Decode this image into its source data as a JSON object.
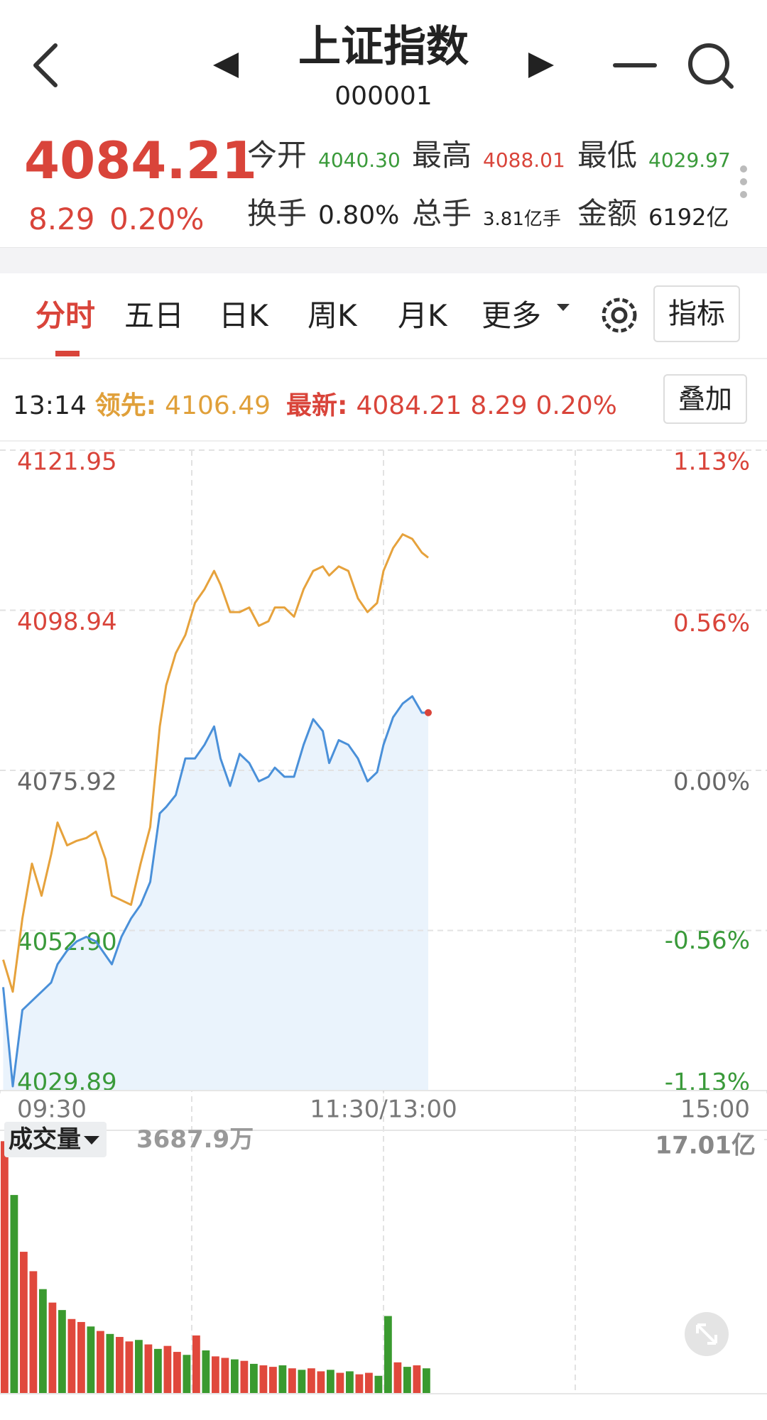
{
  "header": {
    "title": "上证指数",
    "code": "000001"
  },
  "quote": {
    "price": "4084.21",
    "change": "8.29",
    "change_pct": "0.20%",
    "stats": [
      {
        "label": "今开",
        "value": "4040.30"
      },
      {
        "label": "最高",
        "value": "4088.01"
      },
      {
        "label": "最低",
        "value": "4029.97"
      },
      {
        "label": "换手",
        "value": "0.80%"
      },
      {
        "label": "总手",
        "value": "3.81亿手"
      },
      {
        "label": "金额",
        "value": "6192亿"
      }
    ]
  },
  "tabs": [
    "分时",
    "五日",
    "日K",
    "周K",
    "月K",
    "更多"
  ],
  "indicator_button": "指标",
  "info": {
    "time": "13:14",
    "lead_label": "领先:",
    "lead_value": "4106.49",
    "latest_label": "最新:",
    "latest_value": "4084.21",
    "latest_change": "8.29",
    "latest_pct": "0.20%"
  },
  "overlay_button": "叠加",
  "volume_label": "成交量",
  "volume_value": "3687.9万",
  "chart_data": [
    {
      "type": "line",
      "x": [
        1,
        4,
        7,
        10,
        13,
        16,
        18,
        21,
        24,
        27,
        30,
        33,
        35,
        38,
        41,
        44,
        47,
        50,
        52,
        55,
        58,
        61,
        64,
        67,
        69,
        72,
        75,
        78,
        81,
        84,
        86,
        89,
        92,
        95,
        98,
        101,
        103,
        106,
        109,
        112,
        115,
        118,
        120,
        123,
        126,
        129,
        132,
        134
      ],
      "series": [
        {
          "color": "#4a90d9",
          "fill": "#eaf3fc",
          "values": [
            4044.75,
            4030.5,
            4041.47,
            4042.78,
            4044.1,
            4045.41,
            4048.04,
            4050.01,
            4051.33,
            4051.99,
            4051.33,
            4049.36,
            4048.04,
            4051.99,
            4054.62,
            4056.59,
            4059.88,
            4069.74,
            4070.66,
            4072.37,
            4077.63,
            4077.63,
            4079.6,
            4082.23,
            4077.63,
            4073.68,
            4078.29,
            4076.97,
            4074.34,
            4075,
            4076.31,
            4075,
            4075,
            4079.6,
            4083.28,
            4081.57,
            4076.97,
            4080.26,
            4079.6,
            4077.63,
            4074.34,
            4075.66,
            4079.6,
            4083.55,
            4085.52,
            4086.57,
            4084.2,
            4084.21
          ]
        },
        {
          "color": "#e6a23c",
          "values": [
            4048.7,
            4044.1,
            4054.62,
            4062.51,
            4057.9,
            4063.82,
            4068.42,
            4065.14,
            4065.79,
            4066.19,
            4067.11,
            4063.16,
            4057.9,
            4057.25,
            4056.59,
            4062.51,
            4067.77,
            4082.23,
            4088.15,
            4092.75,
            4095.38,
            4099.98,
            4101.96,
            4104.59,
            4102.61,
            4098.67,
            4098.67,
            4099.33,
            4096.7,
            4097.35,
            4099.33,
            4099.33,
            4098.01,
            4101.96,
            4104.59,
            4105.24,
            4103.93,
            4105.24,
            4104.59,
            4100.64,
            4098.67,
            4099.98,
            4104.59,
            4107.87,
            4109.85,
            4109.19,
            4107.22,
            4106.49
          ]
        }
      ],
      "xlim": [
        0,
        240
      ],
      "xticks": [
        {
          "value": 0,
          "label": "09:30"
        },
        {
          "value": 120,
          "label": "11:30/13:00"
        },
        {
          "value": 240,
          "label": "15:00"
        }
      ],
      "ylim": [
        4029.89,
        4121.95
      ],
      "yticks": [
        4029.89,
        {
          "value": 4052.9,
          "label": "4052.90"
        },
        4075.92,
        4098.94,
        4121.95
      ],
      "y2lim": [
        -1.13,
        1.13
      ],
      "y2ticks": [
        {
          "value": -1.13,
          "label": "-1.13%"
        },
        {
          "value": -0.56,
          "label": "-0.56%"
        },
        {
          "value": 0,
          "label": "0.00%"
        },
        {
          "value": 0.56,
          "label": "0.56%"
        },
        {
          "value": 1.13,
          "label": "1.13%"
        }
      ],
      "grid": true
    },
    {
      "type": "bar",
      "x": [
        0,
        3,
        6,
        9,
        12,
        15,
        18,
        21,
        24,
        27,
        30,
        33,
        36,
        39,
        42,
        45,
        48,
        51,
        54,
        57,
        60,
        63,
        66,
        69,
        72,
        75,
        78,
        81,
        84,
        87,
        90,
        93,
        96,
        99,
        102,
        105,
        108,
        111,
        114,
        117,
        120,
        123,
        126,
        129,
        132
      ],
      "values": [
        16.9,
        13.3,
        9.5,
        8.2,
        7,
        6.1,
        5.6,
        5,
        4.8,
        4.5,
        4.2,
        4,
        3.8,
        3.5,
        3.6,
        3.3,
        3,
        3.2,
        2.8,
        2.6,
        3.9,
        2.9,
        2.5,
        2.4,
        2.3,
        2.2,
        2,
        1.9,
        1.8,
        1.9,
        1.7,
        1.6,
        1.7,
        1.5,
        1.6,
        1.4,
        1.5,
        1.3,
        1.4,
        1.2,
        5.2,
        2.1,
        1.8,
        1.9,
        1.7
      ],
      "colors": [
        "#e0483c",
        "#3a9a2f",
        "#e0483c",
        "#e0483c",
        "#3a9a2f",
        "#e0483c",
        "#3a9a2f",
        "#e0483c",
        "#e0483c",
        "#3a9a2f",
        "#e0483c",
        "#3a9a2f",
        "#e0483c",
        "#e0483c",
        "#3a9a2f",
        "#e0483c",
        "#3a9a2f",
        "#e0483c",
        "#e0483c",
        "#3a9a2f",
        "#e0483c",
        "#3a9a2f",
        "#e0483c",
        "#e0483c",
        "#3a9a2f",
        "#e0483c",
        "#3a9a2f",
        "#e0483c",
        "#e0483c",
        "#3a9a2f",
        "#e0483c",
        "#3a9a2f",
        "#e0483c",
        "#e0483c",
        "#3a9a2f",
        "#e0483c",
        "#3a9a2f",
        "#e0483c",
        "#e0483c",
        "#3a9a2f",
        "#3a9a2f",
        "#e0483c",
        "#3a9a2f",
        "#e0483c",
        "#3a9a2f"
      ],
      "xlim": [
        0,
        240
      ],
      "ylim": [
        0,
        17.01
      ],
      "yticks": [
        {
          "value": 17.01,
          "label": "17.01亿"
        }
      ]
    }
  ]
}
